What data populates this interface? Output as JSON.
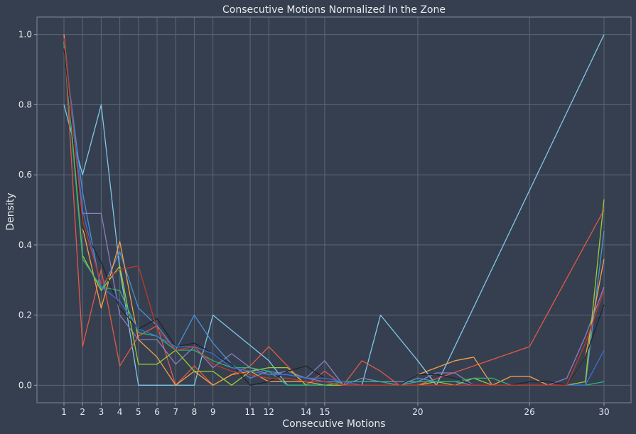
{
  "chart_data": {
    "type": "line",
    "title": "Consecutive Motions Normalized In the Zone",
    "xlabel": "Consecutive Motions",
    "ylabel": "Density",
    "xlim": [
      -0.45,
      31.45
    ],
    "ylim": [
      -0.05,
      1.05
    ],
    "xticks": [
      1,
      2,
      3,
      4,
      5,
      6,
      7,
      8,
      9,
      11,
      12,
      14,
      15,
      20,
      26,
      30
    ],
    "yticks": [
      0.0,
      0.2,
      0.4,
      0.6,
      0.8,
      1.0
    ],
    "grid": true,
    "series": [
      {
        "color": "#7fc8e8",
        "x": [
          1,
          2,
          3,
          4,
          5,
          6,
          7,
          8,
          9,
          12,
          13,
          14,
          15,
          16,
          17,
          18,
          20,
          21,
          30
        ],
        "y": [
          0.8,
          0.6,
          0.8,
          0.33,
          0.0,
          0.0,
          0.0,
          0.0,
          0.2,
          0.07,
          0.0,
          0.0,
          0.0,
          0.0,
          0.0,
          0.2,
          0.07,
          0.0,
          1.0
        ]
      },
      {
        "color": "#e05a47",
        "x": [
          1,
          2,
          3,
          4,
          5,
          6,
          7,
          8,
          9,
          10,
          11,
          12,
          13,
          14,
          15,
          16,
          17,
          18,
          19,
          20,
          26,
          30
        ],
        "y": [
          1.0,
          0.11,
          0.33,
          0.055,
          0.14,
          0.17,
          0.0,
          0.055,
          0.0,
          0.03,
          0.055,
          0.11,
          0.055,
          0.0,
          0.04,
          0.0,
          0.07,
          0.04,
          0.0,
          0.0,
          0.11,
          0.5
        ]
      },
      {
        "color": "#4a90d9",
        "x": [
          1,
          2,
          3,
          4,
          5,
          6,
          7,
          8,
          9,
          10,
          11,
          12,
          13,
          14,
          15,
          16,
          17,
          18,
          19,
          20,
          21,
          22,
          23,
          24,
          25,
          26,
          27,
          28,
          29,
          30
        ],
        "y": [
          0.97,
          0.55,
          0.27,
          0.38,
          0.22,
          0.17,
          0.1,
          0.2,
          0.12,
          0.06,
          0.02,
          0.04,
          0.03,
          0.02,
          0.01,
          0.01,
          0.01,
          0.01,
          0.0,
          0.02,
          0.01,
          0.01,
          0.0,
          0.0,
          0.0,
          0.0,
          0.0,
          0.0,
          0.0,
          0.44
        ]
      },
      {
        "color": "#f5a04a",
        "x": [
          1,
          2,
          3,
          4,
          5,
          6,
          7,
          8,
          9,
          10,
          11,
          12,
          13,
          14,
          15,
          16,
          17,
          18,
          19,
          20,
          21,
          22,
          23,
          24,
          25,
          26,
          27,
          28,
          29,
          30
        ],
        "y": [
          1.0,
          0.45,
          0.22,
          0.41,
          0.13,
          0.08,
          0.0,
          0.04,
          0.0,
          0.03,
          0.04,
          0.01,
          0.01,
          0.01,
          0.0,
          0.0,
          0.0,
          0.0,
          0.0,
          0.03,
          0.05,
          0.07,
          0.08,
          0.0,
          0.025,
          0.025,
          0.0,
          0.0,
          0.08,
          0.36
        ]
      },
      {
        "color": "#8e7cc3",
        "x": [
          1,
          2,
          3,
          4,
          5,
          6,
          7,
          8,
          9,
          10,
          11,
          12,
          13,
          14,
          15,
          16,
          17,
          18,
          19,
          20,
          21,
          22,
          23,
          24,
          25,
          26,
          27,
          28,
          29,
          30
        ],
        "y": [
          0.99,
          0.49,
          0.49,
          0.2,
          0.13,
          0.13,
          0.06,
          0.11,
          0.05,
          0.09,
          0.05,
          0.03,
          0.04,
          0.02,
          0.07,
          0.0,
          0.02,
          0.01,
          0.01,
          0.01,
          0.035,
          0.035,
          0.0,
          0.0,
          0.0,
          0.0,
          0.0,
          0.02,
          0.14,
          0.28
        ]
      },
      {
        "color": "#9acd32",
        "x": [
          1,
          2,
          3,
          4,
          5,
          6,
          7,
          8,
          9,
          10,
          11,
          12,
          13,
          14,
          15,
          16,
          17,
          18,
          19,
          20,
          21,
          22,
          23,
          24,
          25,
          26,
          27,
          28,
          29,
          30
        ],
        "y": [
          0.98,
          0.37,
          0.27,
          0.34,
          0.06,
          0.06,
          0.1,
          0.04,
          0.04,
          0.0,
          0.04,
          0.05,
          0.05,
          0.0,
          0.0,
          0.0,
          0.0,
          0.0,
          0.0,
          0.0,
          0.01,
          0.0,
          0.02,
          0.0,
          0.0,
          0.0,
          0.0,
          0.0,
          0.01,
          0.53
        ]
      },
      {
        "color": "#2db37a",
        "x": [
          1,
          2,
          3,
          4,
          5,
          6,
          7,
          8,
          9,
          10,
          11,
          12,
          13,
          14,
          15,
          16,
          17,
          18,
          19,
          20,
          21,
          22,
          23,
          24,
          25,
          26,
          27,
          28,
          29,
          30
        ],
        "y": [
          0.97,
          0.36,
          0.28,
          0.27,
          0.15,
          0.14,
          0.1,
          0.1,
          0.07,
          0.05,
          0.05,
          0.04,
          0.0,
          0.0,
          0.0,
          0.01,
          0.01,
          0.01,
          0.0,
          0.01,
          0.01,
          0.01,
          0.02,
          0.02,
          0.0,
          0.0,
          0.0,
          0.0,
          0.0,
          0.01
        ]
      },
      {
        "color": "#1f2430",
        "x": [
          1,
          2,
          3,
          4,
          5,
          6,
          7,
          8,
          9,
          10,
          11,
          12,
          13,
          14,
          15,
          16,
          17,
          18,
          19,
          20,
          21,
          22,
          23,
          24,
          25,
          26,
          27,
          28,
          29,
          30
        ],
        "y": [
          0.96,
          0.45,
          0.35,
          0.22,
          0.16,
          0.19,
          0.11,
          0.12,
          0.09,
          0.06,
          0.0,
          0.01,
          0.04,
          0.055,
          0.02,
          0.01,
          0.0,
          0.0,
          0.0,
          0.03,
          0.03,
          0.02,
          0.0,
          0.0,
          0.0,
          0.01,
          0.01,
          0.0,
          0.08,
          0.23
        ]
      },
      {
        "color": "#3f6fd1",
        "x": [
          1,
          2,
          3,
          4,
          5,
          6,
          7,
          8,
          9,
          10,
          11,
          12,
          13,
          14,
          15,
          16,
          17,
          18,
          19,
          20,
          21,
          22,
          23,
          24,
          25,
          26,
          27,
          28,
          29,
          30
        ],
        "y": [
          0.99,
          0.5,
          0.28,
          0.24,
          0.16,
          0.14,
          0.11,
          0.11,
          0.09,
          0.05,
          0.04,
          0.03,
          0.03,
          0.02,
          0.02,
          0.01,
          0.0,
          0.0,
          0.0,
          0.0,
          0.0,
          0.0,
          0.0,
          0.0,
          0.0,
          0.0,
          0.0,
          0.0,
          0.0,
          0.1
        ]
      },
      {
        "color": "#c0392b",
        "x": [
          1,
          2,
          3,
          4,
          5,
          6,
          7,
          8,
          9,
          10,
          11,
          12,
          13,
          14,
          15,
          16,
          17,
          18,
          19,
          20,
          21,
          22,
          23,
          24,
          25,
          26,
          27,
          28,
          29,
          30
        ],
        "y": [
          0.99,
          0.47,
          0.29,
          0.33,
          0.34,
          0.16,
          0.1,
          0.11,
          0.06,
          0.04,
          0.03,
          0.02,
          0.02,
          0.01,
          0.01,
          0.0,
          0.0,
          0.0,
          0.0,
          0.0,
          0.0,
          0.0,
          0.0,
          0.0,
          0.0,
          0.0,
          0.0,
          0.0,
          0.12,
          0.27
        ]
      }
    ]
  }
}
